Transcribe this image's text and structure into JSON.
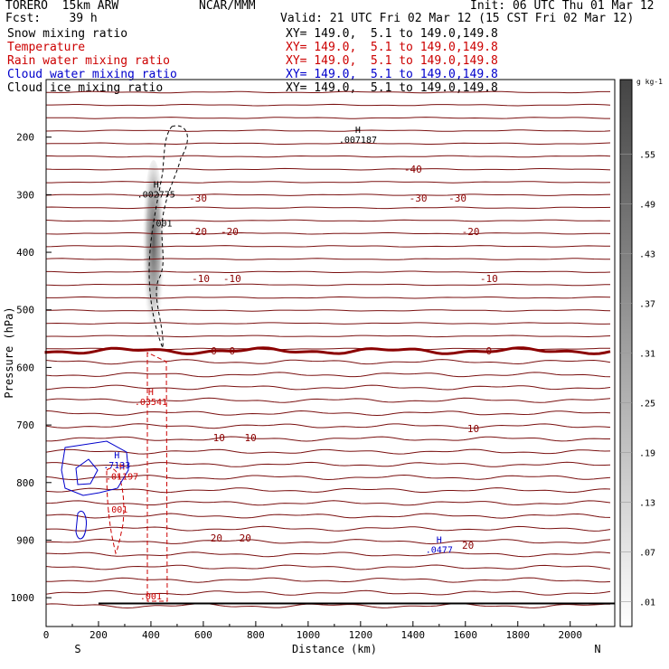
{
  "header": {
    "model": "TORERO  15km ARW",
    "fcst": "Fcst:    39 h",
    "center": "NCAR/MMM",
    "init": "Init: 06 UTC Thu 01 Mar 12",
    "valid": "Valid: 21 UTC Fri 02 Mar 12 (15 CST Fri 02 Mar 12)"
  },
  "legend": [
    {
      "field": "Snow mixing ratio",
      "xy": "XY= 149.0,  5.1 to 149.0,149.8",
      "color": "#000000"
    },
    {
      "field": "Temperature",
      "xy": "XY= 149.0,  5.1 to 149.0,149.8",
      "color": "#cc0000"
    },
    {
      "field": "Rain water mixing ratio",
      "xy": "XY= 149.0,  5.1 to 149.0,149.8",
      "color": "#cc0000"
    },
    {
      "field": "Cloud water mixing ratio",
      "xy": "XY= 149.0,  5.1 to 149.0,149.8",
      "color": "#0000cc"
    },
    {
      "field": "Cloud ice mixing ratio",
      "xy": "XY= 149.0,  5.1 to 149.0,149.8",
      "color": "#000000"
    }
  ],
  "axes": {
    "xlabel": "Distance (km)",
    "ylabel": "Pressure (hPa)",
    "left_end": "S",
    "right_end": "N"
  },
  "colorbar": {
    "unit": "g kg-1",
    "levels": [
      ".01",
      ".07",
      ".13",
      ".19",
      ".25",
      ".31",
      ".37",
      ".43",
      ".49",
      ".55"
    ]
  },
  "chart_data": {
    "type": "contour cross-section",
    "x_ticks": [
      0,
      200,
      400,
      600,
      800,
      1000,
      1200,
      1400,
      1600,
      1800,
      2000
    ],
    "y_ticks": [
      200,
      300,
      400,
      500,
      600,
      700,
      800,
      900,
      1000
    ],
    "xlim": [
      0,
      2170
    ],
    "ylim_hPa": [
      100,
      1050
    ],
    "y_scale": "linear, pressure increasing downward",
    "temperature_isotherms": [
      {
        "temp": -40,
        "labels": [
          {
            "text": "-40",
            "x": 1400
          }
        ]
      },
      {
        "temp": -30,
        "labels": [
          {
            "text": "-30",
            "x": 580
          },
          {
            "text": "-30",
            "x": 1420
          },
          {
            "text": "-30",
            "x": 1570
          }
        ]
      },
      {
        "temp": -20,
        "labels": [
          {
            "text": "-20",
            "x": 580
          },
          {
            "text": "-20",
            "x": 700
          },
          {
            "text": "-20",
            "x": 1620
          }
        ]
      },
      {
        "temp": -10,
        "labels": [
          {
            "text": "-10",
            "x": 590
          },
          {
            "text": "-10",
            "x": 710
          },
          {
            "text": "-10",
            "x": 1690
          }
        ]
      },
      {
        "temp": 0,
        "labels": [
          {
            "text": "0",
            "x": 640
          },
          {
            "text": "0",
            "x": 710
          },
          {
            "text": "0",
            "x": 1690
          }
        ]
      },
      {
        "temp": 10,
        "labels": [
          {
            "text": "10",
            "x": 660
          },
          {
            "text": "10",
            "x": 780
          },
          {
            "text": "10",
            "x": 1630
          }
        ]
      },
      {
        "temp": 20,
        "labels": [
          {
            "text": "20",
            "x": 650
          },
          {
            "text": "20",
            "x": 760
          },
          {
            "text": "20",
            "x": 1610
          }
        ]
      }
    ],
    "snow_mixing_ratio_shading": {
      "x_center": 410,
      "p_top": 240,
      "p_bottom": 590,
      "max_level": ".55"
    },
    "maxima_labels": [
      {
        "field": "Cloud ice mixing ratio",
        "marker": "H",
        "value": ".007187",
        "x": 1190,
        "p": 210
      },
      {
        "field": "Cloud ice mixing ratio",
        "marker": "H",
        "value": ".002775",
        "x": 420,
        "p": 305
      },
      {
        "field": "Cloud ice mixing ratio",
        "marker": "",
        "value": ".001",
        "x": 440,
        "p": 355
      },
      {
        "field": "Rain water mixing ratio",
        "marker": "H",
        "value": ".03541",
        "x": 400,
        "p": 665
      },
      {
        "field": "Rain water mixing ratio",
        "marker": "H",
        "value": ".01197",
        "x": 290,
        "p": 795
      },
      {
        "field": "Rain water mixing ratio",
        "marker": "",
        "value": ".001",
        "x": 270,
        "p": 852
      },
      {
        "field": "Rain water mixing ratio",
        "marker": "",
        "value": ".001",
        "x": 400,
        "p": 1003
      },
      {
        "field": "Cloud water mixing ratio",
        "marker": "H",
        "value": ".7133",
        "x": 270,
        "p": 775
      },
      {
        "field": "Cloud water mixing ratio",
        "marker": "H",
        "value": ".0477",
        "x": 1500,
        "p": 922
      }
    ],
    "surface_pressure_hPa": 1010
  }
}
